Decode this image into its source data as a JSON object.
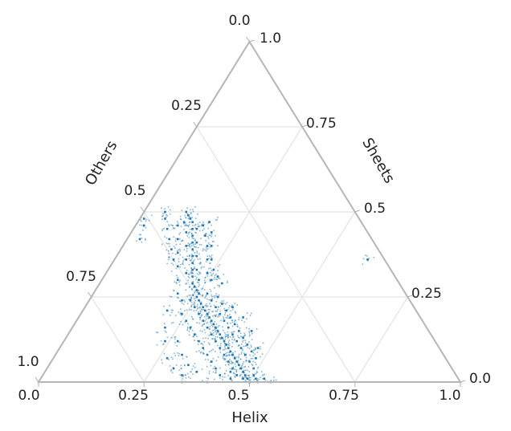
{
  "chart_data": {
    "type": "scatter",
    "subtype": "ternary",
    "axes": {
      "bottom": {
        "label": "Helix",
        "ticks": [
          "0.0",
          "0.25",
          "0.5",
          "0.75",
          "1.0"
        ]
      },
      "right": {
        "label": "Sheets",
        "ticks": [
          "0.0",
          "0.25",
          "0.5",
          "0.75",
          "1.0"
        ]
      },
      "left": {
        "label": "Others",
        "ticks": [
          "0.0",
          "0.25",
          "0.5",
          "0.75",
          "1.0"
        ]
      }
    },
    "grid": true,
    "gridlines": [
      0.25,
      0.5,
      0.75
    ],
    "marker_color": "#1f77b4",
    "points_helix_sheets": [
      [
        0.5,
        0.0
      ],
      [
        0.49,
        0.01
      ],
      [
        0.48,
        0.02
      ],
      [
        0.47,
        0.03
      ],
      [
        0.46,
        0.04
      ],
      [
        0.45,
        0.05
      ],
      [
        0.44,
        0.06
      ],
      [
        0.43,
        0.07
      ],
      [
        0.42,
        0.08
      ],
      [
        0.41,
        0.09
      ],
      [
        0.4,
        0.1
      ],
      [
        0.39,
        0.11
      ],
      [
        0.38,
        0.12
      ],
      [
        0.37,
        0.13
      ],
      [
        0.36,
        0.14
      ],
      [
        0.35,
        0.15
      ],
      [
        0.34,
        0.16
      ],
      [
        0.33,
        0.17
      ],
      [
        0.32,
        0.18
      ],
      [
        0.31,
        0.19
      ],
      [
        0.3,
        0.2
      ],
      [
        0.29,
        0.21
      ],
      [
        0.28,
        0.22
      ],
      [
        0.27,
        0.23
      ],
      [
        0.26,
        0.24
      ],
      [
        0.25,
        0.25
      ],
      [
        0.25,
        0.26
      ],
      [
        0.24,
        0.27
      ],
      [
        0.23,
        0.28
      ],
      [
        0.22,
        0.29
      ],
      [
        0.21,
        0.31
      ],
      [
        0.2,
        0.33
      ],
      [
        0.19,
        0.35
      ],
      [
        0.18,
        0.37
      ],
      [
        0.17,
        0.39
      ],
      [
        0.16,
        0.41
      ],
      [
        0.15,
        0.43
      ],
      [
        0.14,
        0.45
      ],
      [
        0.13,
        0.47
      ],
      [
        0.12,
        0.48
      ],
      [
        0.11,
        0.49
      ],
      [
        0.1,
        0.5
      ],
      [
        0.28,
        0.2
      ],
      [
        0.3,
        0.18
      ],
      [
        0.32,
        0.16
      ],
      [
        0.34,
        0.14
      ],
      [
        0.36,
        0.12
      ],
      [
        0.38,
        0.1
      ],
      [
        0.4,
        0.08
      ],
      [
        0.42,
        0.06
      ],
      [
        0.44,
        0.04
      ],
      [
        0.46,
        0.02
      ],
      [
        0.26,
        0.22
      ],
      [
        0.24,
        0.24
      ],
      [
        0.27,
        0.26
      ],
      [
        0.29,
        0.24
      ],
      [
        0.31,
        0.22
      ],
      [
        0.33,
        0.2
      ],
      [
        0.35,
        0.18
      ],
      [
        0.37,
        0.16
      ],
      [
        0.39,
        0.14
      ],
      [
        0.41,
        0.12
      ],
      [
        0.43,
        0.1
      ],
      [
        0.45,
        0.08
      ],
      [
        0.47,
        0.06
      ],
      [
        0.49,
        0.04
      ],
      [
        0.23,
        0.3
      ],
      [
        0.21,
        0.33
      ],
      [
        0.19,
        0.37
      ],
      [
        0.17,
        0.41
      ],
      [
        0.15,
        0.45
      ],
      [
        0.24,
        0.32
      ],
      [
        0.22,
        0.36
      ],
      [
        0.2,
        0.4
      ],
      [
        0.18,
        0.43
      ],
      [
        0.16,
        0.46
      ],
      [
        0.26,
        0.3
      ],
      [
        0.25,
        0.33
      ],
      [
        0.23,
        0.36
      ],
      [
        0.21,
        0.4
      ],
      [
        0.19,
        0.44
      ],
      [
        0.17,
        0.47
      ],
      [
        0.2,
        0.26
      ],
      [
        0.18,
        0.3
      ],
      [
        0.16,
        0.34
      ],
      [
        0.14,
        0.38
      ],
      [
        0.12,
        0.42
      ],
      [
        0.1,
        0.46
      ],
      [
        0.22,
        0.24
      ],
      [
        0.24,
        0.2
      ],
      [
        0.26,
        0.18
      ],
      [
        0.28,
        0.16
      ],
      [
        0.3,
        0.14
      ],
      [
        0.32,
        0.12
      ],
      [
        0.34,
        0.1
      ],
      [
        0.36,
        0.08
      ],
      [
        0.38,
        0.06
      ],
      [
        0.4,
        0.04
      ],
      [
        0.42,
        0.02
      ],
      [
        0.19,
        0.32
      ],
      [
        0.17,
        0.36
      ],
      [
        0.15,
        0.4
      ],
      [
        0.13,
        0.44
      ],
      [
        0.11,
        0.47
      ],
      [
        0.3,
        0.25
      ],
      [
        0.32,
        0.23
      ],
      [
        0.34,
        0.21
      ],
      [
        0.36,
        0.19
      ],
      [
        0.38,
        0.17
      ],
      [
        0.4,
        0.15
      ],
      [
        0.42,
        0.13
      ],
      [
        0.44,
        0.11
      ],
      [
        0.46,
        0.09
      ],
      [
        0.48,
        0.07
      ],
      [
        0.35,
        0.22
      ],
      [
        0.39,
        0.19
      ],
      [
        0.43,
        0.15
      ],
      [
        0.47,
        0.1
      ],
      [
        0.29,
        0.29
      ],
      [
        0.27,
        0.31
      ],
      [
        0.44,
        0.03
      ],
      [
        0.48,
        0.01
      ],
      [
        0.36,
        0.03
      ],
      [
        0.33,
        0.05
      ],
      [
        0.3,
        0.08
      ],
      [
        0.27,
        0.12
      ],
      [
        0.5,
        0.02
      ],
      [
        0.51,
        0.01
      ],
      [
        0.52,
        0.0
      ],
      [
        0.45,
        0.01
      ],
      [
        0.4,
        0.0
      ],
      [
        0.34,
        0.0
      ],
      [
        0.33,
        0.02
      ],
      [
        0.3,
        0.04
      ],
      [
        0.27,
        0.07
      ],
      [
        0.24,
        0.12
      ],
      [
        0.22,
        0.16
      ],
      [
        0.2,
        0.21
      ],
      [
        0.14,
        0.36
      ],
      [
        0.12,
        0.39
      ],
      [
        0.1,
        0.42
      ],
      [
        0.08,
        0.45
      ],
      [
        0.06,
        0.48
      ],
      [
        0.05,
        0.5
      ],
      [
        0.03,
        0.42
      ],
      [
        0.02,
        0.46
      ],
      [
        0.01,
        0.48
      ],
      [
        0.6,
        0.36
      ],
      [
        0.55,
        0.0
      ],
      [
        0.53,
        0.01
      ]
    ]
  }
}
